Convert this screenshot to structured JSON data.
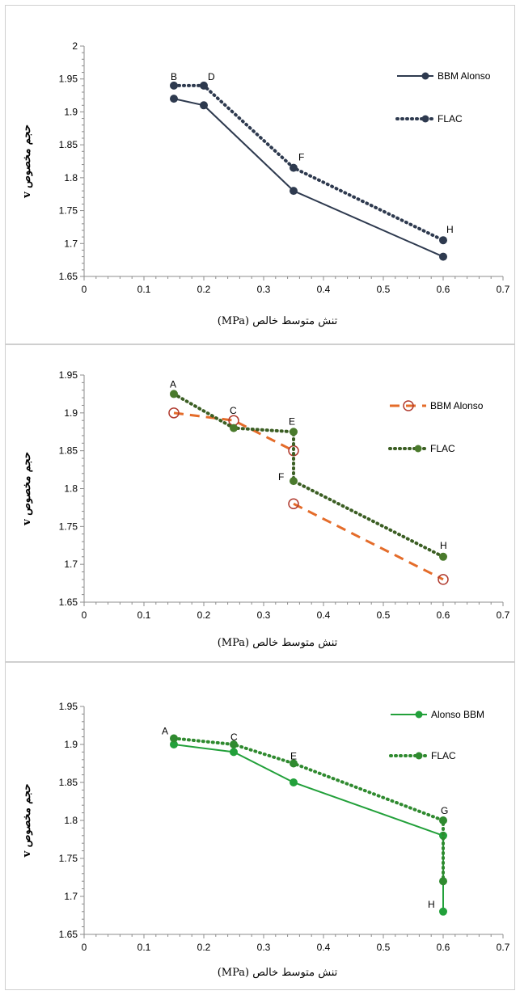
{
  "chart_data": [
    {
      "type": "line",
      "xlabel": "تنش متوسط خالص (MPa)",
      "ylabel": "حجم مخصوص v",
      "xlim": [
        0,
        0.7
      ],
      "ylim": [
        1.65,
        2
      ],
      "xticks": [
        0,
        0.1,
        0.2,
        0.3,
        0.4,
        0.5,
        0.6,
        0.7
      ],
      "xtick_labels": [
        "0",
        "0.1",
        "0.2",
        "0.3",
        "0.4",
        "0.5",
        "0.6",
        "0.7"
      ],
      "yticks": [
        1.65,
        1.7,
        1.75,
        1.8,
        1.85,
        1.9,
        1.95,
        2
      ],
      "ytick_labels": [
        "1.65",
        "1.7",
        "1.75",
        "1.8",
        "1.85",
        "1.9",
        "1.95",
        "2"
      ],
      "grid": false,
      "legend_position": "top-right",
      "series": [
        {
          "name": "BBM Alonso",
          "style": "solid",
          "color": "#2e3a4f",
          "marker": "filled",
          "x": [
            0.15,
            0.2,
            0.35,
            0.6
          ],
          "y": [
            1.92,
            1.91,
            1.78,
            1.68
          ]
        },
        {
          "name": "FLAC",
          "style": "dotted",
          "color": "#2e3a4f",
          "marker": "filled",
          "x": [
            0.15,
            0.2,
            0.35,
            0.6
          ],
          "y": [
            1.94,
            1.94,
            1.815,
            1.705
          ]
        }
      ],
      "annotations": [
        {
          "text": "B",
          "x": 0.15,
          "y": 1.94
        },
        {
          "text": "D",
          "x": 0.2,
          "y": 1.94
        },
        {
          "text": "F",
          "x": 0.35,
          "y": 1.815
        },
        {
          "text": "H",
          "x": 0.6,
          "y": 1.705
        }
      ]
    },
    {
      "type": "line",
      "xlabel": "تنش متوسط خالص (MPa)",
      "ylabel": "حجم مخصوص v",
      "xlim": [
        0,
        0.7
      ],
      "ylim": [
        1.65,
        1.95
      ],
      "xticks": [
        0,
        0.1,
        0.2,
        0.3,
        0.4,
        0.5,
        0.6,
        0.7
      ],
      "xtick_labels": [
        "0",
        "0.1",
        "0.2",
        "0.3",
        "0.4",
        "0.5",
        "0.6",
        "0.7"
      ],
      "yticks": [
        1.65,
        1.7,
        1.75,
        1.8,
        1.85,
        1.9,
        1.95
      ],
      "ytick_labels": [
        "1.65",
        "1.7",
        "1.75",
        "1.8",
        "1.85",
        "1.9",
        "1.95"
      ],
      "grid": false,
      "legend_position": "top-right",
      "series": [
        {
          "name": "BBM Alonso",
          "style": "dashed",
          "color": "#e46c2a",
          "marker": "open-circle",
          "marker_color": "#b03a2e",
          "x": [
            0.15,
            0.25,
            0.35,
            0.35,
            0.6
          ],
          "y": [
            1.9,
            1.89,
            1.85,
            1.78,
            1.68
          ],
          "segments_break_after": [
            2
          ]
        },
        {
          "name": "FLAC",
          "style": "dotted",
          "color": "#3b5e23",
          "marker": "filled",
          "marker_color": "#4a7a2c",
          "x": [
            0.15,
            0.25,
            0.35,
            0.35,
            0.6
          ],
          "y": [
            1.925,
            1.88,
            1.875,
            1.81,
            1.71
          ]
        }
      ],
      "annotations": [
        {
          "text": "A",
          "x": 0.15,
          "y": 1.925
        },
        {
          "text": "C",
          "x": 0.25,
          "y": 1.89
        },
        {
          "text": "E",
          "x": 0.35,
          "y": 1.875
        },
        {
          "text": "F",
          "x": 0.35,
          "y": 1.81
        },
        {
          "text": "H",
          "x": 0.6,
          "y": 1.71
        }
      ]
    },
    {
      "type": "line",
      "xlabel": "تنش متوسط خالص (MPa)",
      "ylabel": "حجم مخصوص v",
      "xlim": [
        0,
        0.7
      ],
      "ylim": [
        1.65,
        1.95
      ],
      "xticks": [
        0,
        0.1,
        0.2,
        0.3,
        0.4,
        0.5,
        0.6,
        0.7
      ],
      "xtick_labels": [
        "0",
        "0.1",
        "0.2",
        "0.3",
        "0.4",
        "0.5",
        "0.6",
        "0.7"
      ],
      "yticks": [
        1.65,
        1.7,
        1.75,
        1.8,
        1.85,
        1.9,
        1.95
      ],
      "ytick_labels": [
        "1.65",
        "1.7",
        "1.75",
        "1.8",
        "1.85",
        "1.9",
        "1.95"
      ],
      "grid": false,
      "legend_position": "top-right",
      "series": [
        {
          "name": "Alonso BBM",
          "style": "solid",
          "color": "#22a03a",
          "marker": "filled",
          "x": [
            0.15,
            0.25,
            0.35,
            0.6,
            0.6
          ],
          "y": [
            1.9,
            1.89,
            1.85,
            1.78,
            1.68
          ]
        },
        {
          "name": "FLAC",
          "style": "dotted",
          "color": "#2f8a2f",
          "marker": "filled",
          "x": [
            0.15,
            0.25,
            0.35,
            0.6,
            0.6
          ],
          "y": [
            1.908,
            1.9,
            1.875,
            1.8,
            1.72
          ]
        }
      ],
      "annotations": [
        {
          "text": "A",
          "x": 0.15,
          "y": 1.908
        },
        {
          "text": "C",
          "x": 0.25,
          "y": 1.9
        },
        {
          "text": "E",
          "x": 0.35,
          "y": 1.875
        },
        {
          "text": "G",
          "x": 0.6,
          "y": 1.8
        },
        {
          "text": "H",
          "x": 0.6,
          "y": 1.68
        }
      ]
    }
  ]
}
